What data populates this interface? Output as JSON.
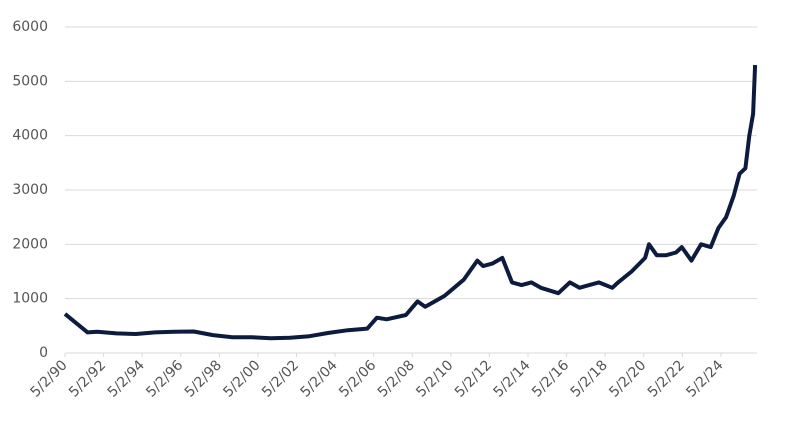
{
  "chart_data": {
    "type": "line",
    "x": [
      1990.33,
      1991.5,
      1992,
      1993,
      1994,
      1995,
      1996,
      1997,
      1998,
      1999,
      2000,
      2001,
      2002,
      2003,
      2004,
      2005,
      2006,
      2006.5,
      2007,
      2008,
      2008.6,
      2009,
      2009.5,
      2010,
      2010.5,
      2011,
      2011.7,
      2012,
      2012.5,
      2013,
      2013.5,
      2014,
      2014.5,
      2015,
      2015.9,
      2016.5,
      2017,
      2017.5,
      2018,
      2018.7,
      2019,
      2019.7,
      2020.4,
      2020.6,
      2021,
      2021.5,
      2022,
      2022.3,
      2022.8,
      2023.3,
      2023.8,
      2024.2,
      2024.6,
      2025,
      2025.3,
      2025.6,
      2025.8,
      2026.0,
      2026.1
    ],
    "series": [
      {
        "color": "#0d1b3e",
        "values": [
          720,
          380,
          390,
          360,
          350,
          380,
          390,
          395,
          330,
          290,
          290,
          270,
          280,
          310,
          370,
          420,
          450,
          650,
          620,
          700,
          950,
          850,
          950,
          1050,
          1200,
          1350,
          1700,
          1600,
          1650,
          1750,
          1300,
          1250,
          1300,
          1200,
          1100,
          1300,
          1200,
          1250,
          1300,
          1200,
          1300,
          1500,
          1750,
          2000,
          1800,
          1800,
          1850,
          1950,
          1700,
          2000,
          1950,
          2300,
          2500,
          2900,
          3300,
          3400,
          4000,
          4400,
          5300
        ]
      }
    ],
    "xlim": [
      1990.33,
      2026.2
    ],
    "xticks": [
      {
        "value": 1990.33,
        "label": "5/2/90"
      },
      {
        "value": 1992.33,
        "label": "5/2/92"
      },
      {
        "value": 1994.33,
        "label": "5/2/94"
      },
      {
        "value": 1996.33,
        "label": "5/2/96"
      },
      {
        "value": 1998.33,
        "label": "5/2/98"
      },
      {
        "value": 2000.33,
        "label": "5/2/00"
      },
      {
        "value": 2002.33,
        "label": "5/2/02"
      },
      {
        "value": 2004.33,
        "label": "5/2/04"
      },
      {
        "value": 2006.33,
        "label": "5/2/06"
      },
      {
        "value": 2008.33,
        "label": "5/2/08"
      },
      {
        "value": 2010.33,
        "label": "5/2/10"
      },
      {
        "value": 2012.33,
        "label": "5/2/12"
      },
      {
        "value": 2014.33,
        "label": "5/2/14"
      },
      {
        "value": 2016.33,
        "label": "5/2/16"
      },
      {
        "value": 2018.33,
        "label": "5/2/18"
      },
      {
        "value": 2020.33,
        "label": "5/2/20"
      },
      {
        "value": 2022.33,
        "label": "5/2/22"
      },
      {
        "value": 2024.33,
        "label": "5/2/24"
      }
    ],
    "ylim": [
      0,
      6000
    ],
    "yticks": [
      0,
      1000,
      2000,
      3000,
      4000,
      5000,
      6000
    ],
    "grid": true
  }
}
